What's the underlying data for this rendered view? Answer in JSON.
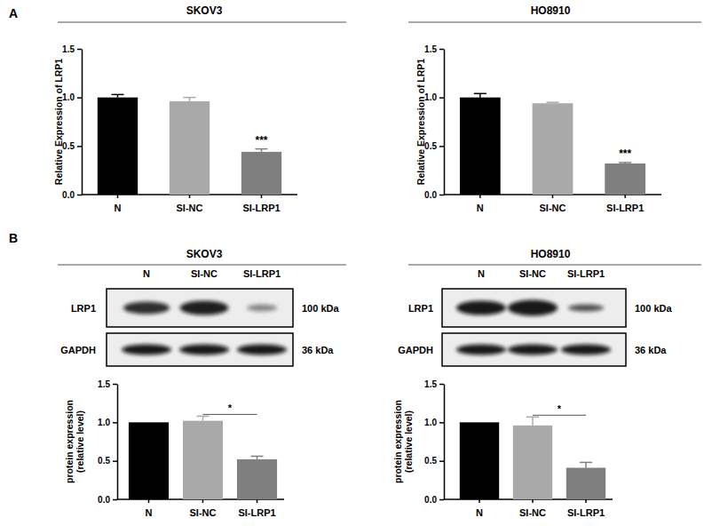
{
  "panel_labels": [
    "A",
    "B"
  ],
  "blots": [
    {
      "title": "SKOV3",
      "lanes": [
        "N",
        "SI-NC",
        "SI-LRP1"
      ],
      "rows": [
        {
          "label": "LRP1",
          "size": "100 kDa"
        },
        {
          "label": "GAPDH",
          "size": "36 kDa"
        }
      ]
    },
    {
      "title": "HO8910",
      "lanes": [
        "N",
        "SI-NC",
        "SI-LRP1"
      ],
      "rows": [
        {
          "label": "LRP1",
          "size": "100 kDa"
        },
        {
          "label": "GAPDH",
          "size": "36 kDa"
        }
      ]
    }
  ],
  "chart_data": [
    {
      "type": "bar",
      "title": "SKOV3",
      "y_label": "Relative Expression of LRP1",
      "categories": [
        "N",
        "SI-NC",
        "SI-LRP1"
      ],
      "values": [
        1.0,
        0.96,
        0.44
      ],
      "errors": [
        0.03,
        0.04,
        0.03
      ],
      "colors": [
        "#000000",
        "#a9a9a9",
        "#7f7f7f"
      ],
      "ylim": [
        0,
        1.5
      ],
      "yticks": [
        {
          "value": 0,
          "label": "0.0"
        },
        {
          "value": 0.5,
          "label": "0.5"
        },
        {
          "value": 1,
          "label": "1.0"
        },
        {
          "value": 1.5,
          "label": "1.5"
        }
      ],
      "annotations": [
        {
          "text": "***",
          "categories": [
            "SI-LRP1"
          ]
        }
      ]
    },
    {
      "type": "bar",
      "title": "HO8910",
      "y_label": "Relative Expression of LRP1",
      "categories": [
        "N",
        "SI-NC",
        "SI-LRP1"
      ],
      "values": [
        1.0,
        0.94,
        0.32
      ],
      "errors": [
        0.04,
        0.01,
        0.01
      ],
      "colors": [
        "#000000",
        "#a9a9a9",
        "#7f7f7f"
      ],
      "ylim": [
        0,
        1.5
      ],
      "yticks": [
        {
          "value": 0,
          "label": "0.0"
        },
        {
          "value": 0.5,
          "label": "0.5"
        },
        {
          "value": 1,
          "label": "1.0"
        },
        {
          "value": 1.5,
          "label": "1.5"
        }
      ],
      "annotations": [
        {
          "text": "***",
          "categories": [
            "SI-LRP1"
          ]
        }
      ]
    },
    {
      "type": "bar",
      "y_label": [
        "protein expression",
        "(relative level)"
      ],
      "categories": [
        "N",
        "SI-NC",
        "SI-LRP1"
      ],
      "values": [
        1.0,
        1.02,
        0.52
      ],
      "errors": [
        null,
        0.06,
        0.04
      ],
      "colors": [
        "#000000",
        "#a9a9a9",
        "#7f7f7f"
      ],
      "ylim": [
        0,
        1.5
      ],
      "yticks": [
        {
          "value": 0,
          "label": "0.0"
        },
        {
          "value": 0.5,
          "label": "0.5"
        },
        {
          "value": 1,
          "label": "1.0"
        },
        {
          "value": 1.5,
          "label": "1.5"
        }
      ],
      "annotations": [
        {
          "text": "*",
          "categories": [
            "SI-NC",
            "SI-LRP1"
          ]
        }
      ]
    },
    {
      "type": "bar",
      "y_label": [
        "protein expression",
        "(relative level)"
      ],
      "categories": [
        "N",
        "SI-NC",
        "SI-LRP1"
      ],
      "values": [
        1.0,
        0.96,
        0.41
      ],
      "errors": [
        null,
        0.11,
        0.07
      ],
      "colors": [
        "#000000",
        "#a9a9a9",
        "#7f7f7f"
      ],
      "ylim": [
        0,
        1.5
      ],
      "yticks": [
        {
          "value": 0,
          "label": "0.0"
        },
        {
          "value": 0.5,
          "label": "0.5"
        },
        {
          "value": 1,
          "label": "1.0"
        },
        {
          "value": 1.5,
          "label": "1.5"
        }
      ],
      "annotations": [
        {
          "text": "*",
          "categories": [
            "SI-NC",
            "SI-LRP1"
          ]
        }
      ]
    }
  ]
}
